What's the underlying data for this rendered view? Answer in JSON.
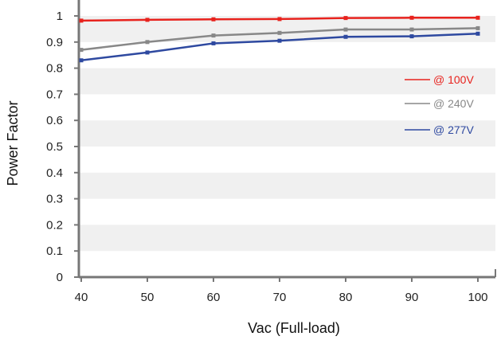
{
  "chart_data": {
    "type": "line",
    "title": "",
    "xlabel": "Vac (Full-load)",
    "ylabel": "Power Factor",
    "x": [
      40,
      50,
      60,
      70,
      80,
      90,
      100
    ],
    "xlim": [
      40,
      100
    ],
    "ylim": [
      0,
      1.05
    ],
    "x_ticks": [
      "40",
      "50",
      "60",
      "70",
      "80",
      "90",
      "100"
    ],
    "y_ticks": [
      "0",
      "0.1",
      "0.2",
      "0.3",
      "0.4",
      "0.5",
      "0.6",
      "0.7",
      "0.8",
      "0.9",
      "1"
    ],
    "grid": "alternating horizontal bands",
    "legend_position": "right",
    "series": [
      {
        "name": "@ 100V",
        "color": "#e8221d",
        "values": [
          0.982,
          0.985,
          0.987,
          0.988,
          0.992,
          0.993,
          0.993
        ]
      },
      {
        "name": "@ 240V",
        "color": "#888888",
        "values": [
          0.87,
          0.9,
          0.925,
          0.935,
          0.948,
          0.948,
          0.953
        ]
      },
      {
        "name": "@ 277V",
        "color": "#2e49a0",
        "values": [
          0.83,
          0.86,
          0.895,
          0.905,
          0.92,
          0.922,
          0.932
        ]
      }
    ]
  }
}
